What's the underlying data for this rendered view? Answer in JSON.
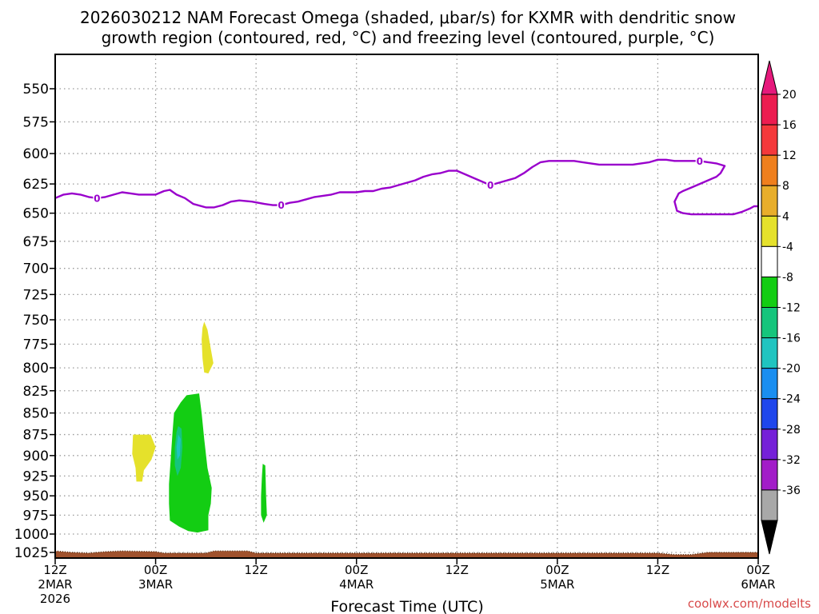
{
  "title_line1": "2026030212 NAM Forecast Omega (shaded, μbar/s) for KXMR with dendritic snow",
  "title_line2": "growth region (contoured, red, °C) and freezing level (contoured, purple, °C)",
  "credit": "coolwx.com/modelts",
  "colors": {
    "freezing_level": "#9900cc",
    "ground": "#a0522d",
    "grid": "#999999"
  },
  "chart_data": {
    "type": "contour",
    "xlabel": "Forecast Time (UTC)",
    "xlim": [
      0,
      84
    ],
    "ylim": [
      540,
      1030
    ],
    "y_scale": "pressure (hPa), inverted",
    "grid": true,
    "x_ticks": [
      {
        "hour": 0,
        "line1": "12Z",
        "line2": "2MAR",
        "line3": "2026"
      },
      {
        "hour": 12,
        "line1": "00Z",
        "line2": "3MAR",
        "line3": ""
      },
      {
        "hour": 24,
        "line1": "12Z",
        "line2": "",
        "line3": ""
      },
      {
        "hour": 36,
        "line1": "00Z",
        "line2": "4MAR",
        "line3": ""
      },
      {
        "hour": 48,
        "line1": "12Z",
        "line2": "",
        "line3": ""
      },
      {
        "hour": 60,
        "line1": "00Z",
        "line2": "5MAR",
        "line3": ""
      },
      {
        "hour": 72,
        "line1": "12Z",
        "line2": "",
        "line3": ""
      },
      {
        "hour": 84,
        "line1": "00Z",
        "line2": "6MAR",
        "line3": ""
      }
    ],
    "y_ticks": [
      550,
      575,
      600,
      625,
      650,
      675,
      700,
      725,
      750,
      775,
      800,
      825,
      850,
      875,
      900,
      925,
      950,
      975,
      1000,
      1025
    ],
    "colorbar": {
      "labels": [
        "20",
        "16",
        "12",
        "8",
        "4",
        "-4",
        "-8",
        "-12",
        "-16",
        "-20",
        "-24",
        "-28",
        "-32",
        "-36"
      ],
      "colors": [
        "#ec1c50",
        "#f4393b",
        "#ef7f1d",
        "#e8ae2b",
        "#e5e12b",
        "#ffffff",
        "#13cd13",
        "#15c57c",
        "#20c4c0",
        "#1a8ef0",
        "#1f46ec",
        "#7520d8",
        "#a21cc8",
        "#a8a8a8"
      ],
      "top_arrow": "#e6197c",
      "bottom_arrow": "#000000"
    },
    "freezing_level": {
      "label": "0",
      "label_hours": [
        5,
        27,
        52,
        77
      ],
      "main": [
        [
          0,
          637
        ],
        [
          1,
          634
        ],
        [
          2,
          633
        ],
        [
          3,
          634
        ],
        [
          4,
          636
        ],
        [
          5,
          637
        ],
        [
          6,
          636
        ],
        [
          7,
          634
        ],
        [
          8,
          632
        ],
        [
          9,
          633
        ],
        [
          10,
          634
        ],
        [
          11,
          634
        ],
        [
          12,
          634
        ],
        [
          13,
          631
        ],
        [
          13.7,
          630
        ],
        [
          14.5,
          634
        ],
        [
          15.5,
          637
        ],
        [
          16.5,
          642
        ],
        [
          18,
          645
        ],
        [
          19,
          645
        ],
        [
          20,
          643
        ],
        [
          21,
          640
        ],
        [
          22,
          639
        ],
        [
          23.5,
          640
        ],
        [
          25,
          642
        ],
        [
          26,
          643
        ],
        [
          27,
          643
        ],
        [
          28,
          641
        ],
        [
          29,
          640
        ],
        [
          30,
          638
        ],
        [
          31,
          636
        ],
        [
          32,
          635
        ],
        [
          33,
          634
        ],
        [
          34,
          632
        ],
        [
          35,
          632
        ],
        [
          36,
          632
        ],
        [
          37,
          631
        ],
        [
          38,
          631
        ],
        [
          39,
          629
        ],
        [
          40,
          628
        ],
        [
          41,
          626
        ],
        [
          42,
          624
        ],
        [
          43,
          622
        ],
        [
          44,
          619
        ],
        [
          45,
          617
        ],
        [
          46,
          616
        ],
        [
          47,
          614
        ],
        [
          48,
          614
        ],
        [
          49,
          617
        ],
        [
          50,
          620
        ],
        [
          51,
          623
        ],
        [
          52,
          626
        ],
        [
          53,
          624
        ],
        [
          54,
          622
        ],
        [
          55,
          620
        ],
        [
          56,
          616
        ],
        [
          57,
          611
        ],
        [
          58,
          607
        ],
        [
          59,
          606
        ],
        [
          60,
          606
        ],
        [
          61,
          606
        ],
        [
          62,
          606
        ],
        [
          63,
          607
        ],
        [
          64,
          608
        ],
        [
          65,
          609
        ],
        [
          66,
          609
        ],
        [
          67,
          609
        ],
        [
          68,
          609
        ],
        [
          69,
          609
        ],
        [
          70,
          608
        ],
        [
          71,
          607
        ],
        [
          72,
          605
        ],
        [
          73,
          605
        ],
        [
          74,
          606
        ],
        [
          75,
          606
        ],
        [
          76,
          606
        ],
        [
          77,
          606
        ],
        [
          78,
          607
        ],
        [
          79,
          608
        ],
        [
          80,
          610
        ],
        [
          79.5,
          616
        ],
        [
          79,
          619
        ],
        [
          78,
          622
        ],
        [
          77,
          625
        ],
        [
          76,
          628
        ],
        [
          75,
          631
        ],
        [
          74.5,
          633
        ],
        [
          74,
          640
        ],
        [
          74.3,
          648
        ],
        [
          75,
          650
        ],
        [
          76,
          651
        ],
        [
          77,
          651
        ],
        [
          78,
          651
        ],
        [
          79,
          651
        ],
        [
          80,
          651
        ],
        [
          81,
          651
        ],
        [
          82,
          649
        ],
        [
          83,
          646
        ],
        [
          83.5,
          644
        ],
        [
          84,
          644
        ]
      ]
    },
    "omega_regions": [
      {
        "color": "#e5e12b",
        "points": [
          [
            9.3,
            875
          ],
          [
            11.4,
            875
          ],
          [
            12.0,
            890
          ],
          [
            11.5,
            905
          ],
          [
            10.6,
            918
          ],
          [
            10.4,
            932
          ],
          [
            9.7,
            932
          ],
          [
            9.6,
            915
          ],
          [
            9.2,
            898
          ]
        ]
      },
      {
        "color": "#e5e12b",
        "points": [
          [
            17.8,
            752
          ],
          [
            18.2,
            760
          ],
          [
            18.6,
            780
          ],
          [
            18.9,
            795
          ],
          [
            18.3,
            806
          ],
          [
            17.8,
            805
          ],
          [
            17.6,
            790
          ],
          [
            17.5,
            770
          ],
          [
            17.6,
            758
          ]
        ]
      },
      {
        "color": "#13cd13",
        "points": [
          [
            15.7,
            830
          ],
          [
            17.2,
            828
          ],
          [
            17.5,
            850
          ],
          [
            17.8,
            880
          ],
          [
            18.2,
            915
          ],
          [
            18.7,
            940
          ],
          [
            18.6,
            960
          ],
          [
            18.3,
            975
          ],
          [
            18.3,
            995
          ],
          [
            17.0,
            998
          ],
          [
            15.9,
            996
          ],
          [
            14.8,
            990
          ],
          [
            13.7,
            982
          ],
          [
            13.6,
            960
          ],
          [
            13.6,
            935
          ],
          [
            13.8,
            905
          ],
          [
            14.0,
            875
          ],
          [
            14.2,
            850
          ],
          [
            15.0,
            838
          ]
        ]
      },
      {
        "color": "#15c57c",
        "points": [
          [
            14.7,
            865
          ],
          [
            15.1,
            868
          ],
          [
            15.2,
            890
          ],
          [
            15.0,
            915
          ],
          [
            14.6,
            925
          ],
          [
            14.3,
            912
          ],
          [
            14.3,
            890
          ],
          [
            14.5,
            872
          ]
        ]
      },
      {
        "color": "#20c4c0",
        "points": [
          [
            14.7,
            875
          ],
          [
            15.0,
            880
          ],
          [
            14.9,
            900
          ],
          [
            14.6,
            905
          ],
          [
            14.5,
            890
          ]
        ]
      },
      {
        "color": "#13cd13",
        "points": [
          [
            24.8,
            910
          ],
          [
            25.1,
            912
          ],
          [
            25.2,
            950
          ],
          [
            25.3,
            975
          ],
          [
            24.9,
            985
          ],
          [
            24.6,
            975
          ],
          [
            24.6,
            950
          ],
          [
            24.7,
            925
          ]
        ]
      }
    ],
    "ground_top": [
      [
        0,
        1023
      ],
      [
        2,
        1025
      ],
      [
        4,
        1026
      ],
      [
        6,
        1024
      ],
      [
        8,
        1023
      ],
      [
        12,
        1024
      ],
      [
        13,
        1026
      ],
      [
        18,
        1026
      ],
      [
        19,
        1023
      ],
      [
        23,
        1023
      ],
      [
        24,
        1026
      ],
      [
        30,
        1026
      ],
      [
        36,
        1026
      ],
      [
        48,
        1026
      ],
      [
        60,
        1026
      ],
      [
        72,
        1026
      ],
      [
        74,
        1028
      ],
      [
        76,
        1028
      ],
      [
        78,
        1025
      ],
      [
        84,
        1025
      ]
    ]
  }
}
